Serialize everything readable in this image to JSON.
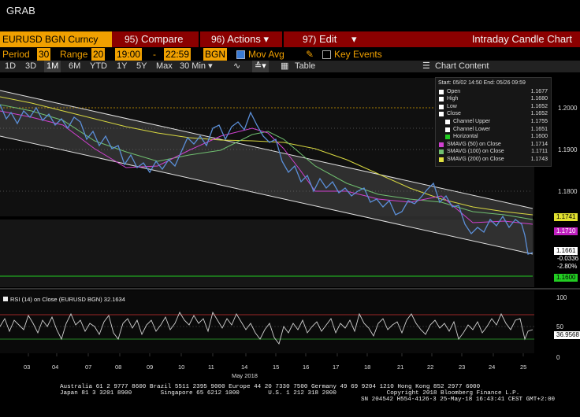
{
  "window": {
    "title": "GRAB"
  },
  "menubar": {
    "ticker": "EURUSD BGN Curncy",
    "compare_num": "95)",
    "compare": "Compare",
    "actions_num": "96)",
    "actions": "Actions",
    "edit_num": "97)",
    "edit": "Edit",
    "view_title": "Intraday Candle Chart"
  },
  "options": {
    "period_label": "Period",
    "period_value": "30",
    "range_label": "Range",
    "range_value": "20",
    "time_from": "19:00",
    "dash": "-",
    "time_to": "22:59",
    "source": "BGN",
    "mov_avg": "Mov Avg",
    "key_events": "Key Events"
  },
  "toolbar": {
    "ranges": [
      "1D",
      "3D",
      "1M",
      "6M",
      "YTD",
      "1Y",
      "5Y",
      "Max"
    ],
    "selected_range": "1M",
    "interval": "30 Min",
    "table": "Table",
    "chart_content": "Chart Content"
  },
  "legend": {
    "header": "Start: 05/02 14:50 End: 05/26 09:59",
    "rows": [
      {
        "label": "Open",
        "value": "1.1677",
        "color": "#ffffff",
        "sub": false
      },
      {
        "label": "High",
        "value": "1.1680",
        "color": "#ffffff",
        "sub": false
      },
      {
        "label": "Low",
        "value": "1.1652",
        "color": "#ffffff",
        "sub": false
      },
      {
        "label": "Close",
        "value": "1.1652",
        "color": "#ffffff",
        "sub": false
      },
      {
        "label": "Channel Upper",
        "value": "1.1755",
        "color": "#ffffff",
        "sub": true
      },
      {
        "label": "Channel Lower",
        "value": "1.1651",
        "color": "#ffffff",
        "sub": true
      },
      {
        "label": "Horizontal",
        "value": "1.1600",
        "color": "#22cc22",
        "sub": true
      },
      {
        "label": "SMAVG (50) on Close",
        "value": "1.1714",
        "color": "#d040d0",
        "sub": false
      },
      {
        "label": "SMAVG (100) on Close",
        "value": "1.1711",
        "color": "#70c070",
        "sub": false
      },
      {
        "label": "SMAVG (200) on Close",
        "value": "1.1743",
        "color": "#e0e040",
        "sub": false
      }
    ]
  },
  "price_axis": {
    "ticks": [
      "1.2000",
      "1.1900",
      "1.1800"
    ]
  },
  "price_boxes": {
    "sma200": "1.1741",
    "sma50": "1.1710",
    "last": "1.1661",
    "change": "-0.0336",
    "change_pct": "-2.80%",
    "horizontal": "1.1600"
  },
  "rsi": {
    "label": "RSI (14) on Close (EURUSD BGN) 32.1634",
    "value": "36.9568",
    "ticks": [
      "100",
      "50",
      "0"
    ]
  },
  "x_axis": {
    "days": [
      "03",
      "04",
      "07",
      "08",
      "09",
      "10",
      "11",
      "14",
      "15",
      "16",
      "17",
      "18",
      "21",
      "22",
      "23",
      "24",
      "25"
    ],
    "month": "May 2018"
  },
  "footer": {
    "line1": "Australia 61 2 9777 8600 Brazil 5511 2395 9000 Europe 44 20 7330 7500 Germany 49 69 9204 1210 Hong Kong 852 2977 6000",
    "line2": "Japan 81 3 3201 8900        Singapore 65 6212 1000        U.S. 1 212 318 2000              Copyright 2018 Bloomberg Finance L.P.",
    "line3": "SN 204542 H554-4126-3 25-May-18 16:43:41 CEST GMT+2:00"
  }
}
